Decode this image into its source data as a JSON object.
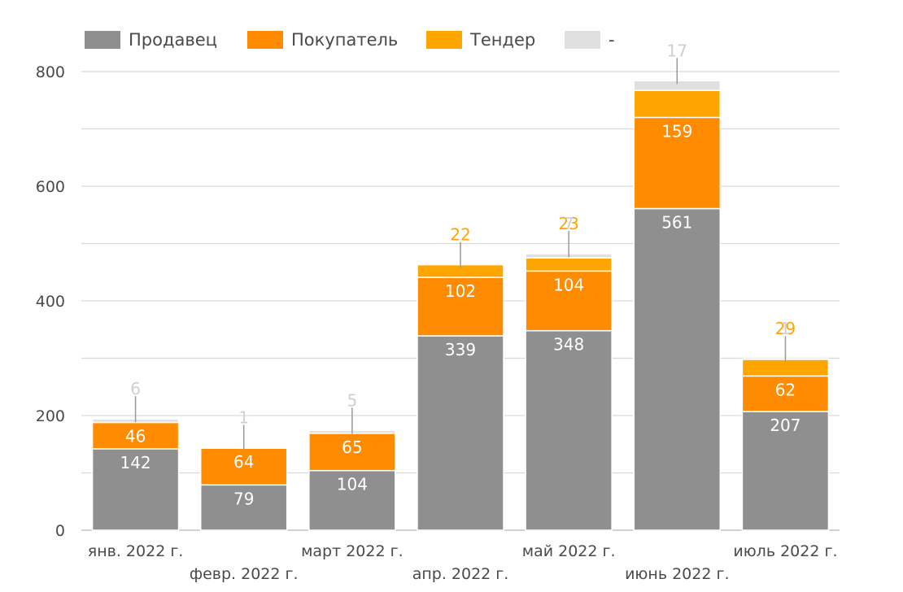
{
  "chart_data": {
    "type": "bar",
    "stacked": true,
    "title": "",
    "xlabel": "",
    "ylabel": "",
    "ylim": [
      0,
      800
    ],
    "yticks": [
      0,
      200,
      400,
      600,
      800
    ],
    "grid": true,
    "legend_position": "top-left",
    "categories": [
      "янв. 2022 г.",
      "февр. 2022 г.",
      "март 2022 г.",
      "апр. 2022 г.",
      "май 2022 г.",
      "июнь 2022 г.",
      "июль 2022 г."
    ],
    "series": [
      {
        "name": "Продавец",
        "color": "#8f8f8f",
        "label_color": "#ffffff",
        "values": [
          142,
          79,
          104,
          339,
          348,
          561,
          207
        ]
      },
      {
        "name": "Покупатель",
        "color": "#ff8c00",
        "label_color": "#ffffff",
        "values": [
          46,
          64,
          65,
          102,
          104,
          159,
          62
        ]
      },
      {
        "name": "Тендер",
        "color": "#ffa500",
        "label_color": "#ffa500",
        "values": [
          0,
          0,
          0,
          22,
          23,
          47,
          29
        ]
      },
      {
        "name": "-",
        "color": "#e0e0e0",
        "label_color": "#d0d0d0",
        "values": [
          6,
          1,
          5,
          0,
          7,
          17,
          1
        ]
      }
    ]
  }
}
